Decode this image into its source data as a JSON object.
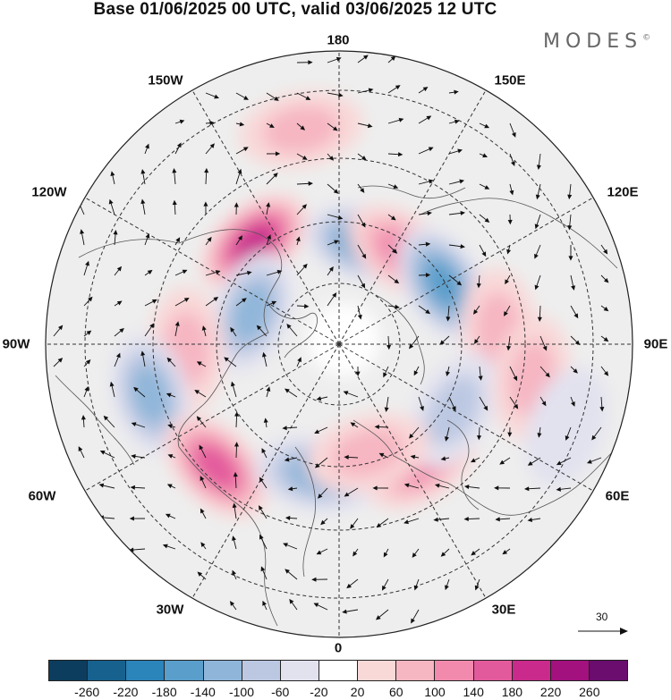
{
  "title": "Base 01/06/2025 00 UTC, valid 03/06/2025 12 UTC",
  "brand": "MODES",
  "brand_mark": "©",
  "longitude_labels": {
    "lon_180": "180",
    "lon_150w": "150W",
    "lon_150e": "150E",
    "lon_120w": "120W",
    "lon_120e": "120E",
    "lon_90w": "90W",
    "lon_90e": "90E",
    "lon_60w": "60W",
    "lon_60e": "60E",
    "lon_30w": "30W",
    "lon_30e": "30E",
    "lon_0": "0"
  },
  "reference_vector_label": "30",
  "colorbar": {
    "colors": [
      "#0c3d5e",
      "#17618f",
      "#2b84ba",
      "#5a9ecb",
      "#8fb6d9",
      "#bcc8e2",
      "#e2e2ef",
      "#ffffff",
      "#f9d8d8",
      "#f6b6c2",
      "#f18aad",
      "#e35a9c",
      "#c92a8c",
      "#a2117e",
      "#6a0d6e"
    ],
    "ticks": [
      "-260",
      "-220",
      "-180",
      "-140",
      "-100",
      "-60",
      "-20",
      "20",
      "60",
      "100",
      "140",
      "180",
      "220",
      "260"
    ]
  },
  "anomaly_centers": [
    {
      "lon": -140,
      "lat": 55,
      "value": 200
    },
    {
      "lon": 165,
      "lat": 62,
      "value": -140
    },
    {
      "lon": 145,
      "lat": 60,
      "value": 130
    },
    {
      "lon": 120,
      "lat": 58,
      "value": -140
    },
    {
      "lon": 95,
      "lat": 48,
      "value": 60
    },
    {
      "lon": -110,
      "lat": 65,
      "value": -100
    },
    {
      "lon": -88,
      "lat": 50,
      "value": 60
    },
    {
      "lon": -75,
      "lat": 40,
      "value": -100
    },
    {
      "lon": -45,
      "lat": 45,
      "value": 150
    },
    {
      "lon": -10,
      "lat": 55,
      "value": -110
    },
    {
      "lon": 35,
      "lat": 52,
      "value": 100
    },
    {
      "lon": 60,
      "lat": 55,
      "value": -60
    },
    {
      "lon": 80,
      "lat": 40,
      "value": 60
    },
    {
      "lon": 15,
      "lat": 60,
      "value": 60
    },
    {
      "lon": -170,
      "lat": 35,
      "value": 60
    },
    {
      "lon": 70,
      "lat": 30,
      "value": -40
    }
  ]
}
